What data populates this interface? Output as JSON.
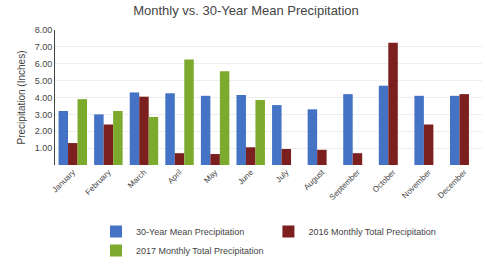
{
  "chart_data": {
    "type": "bar",
    "title": "Monthly vs. 30-Year Mean Precipitation",
    "ylabel": "Precipitation (Inches)",
    "categories": [
      "January",
      "February",
      "March",
      "April",
      "May",
      "June",
      "July",
      "August",
      "September",
      "October",
      "November",
      "December"
    ],
    "series": [
      {
        "name": "30-Year Mean Precipitation",
        "color": "#4472C4",
        "values": [
          3.2,
          3.0,
          4.3,
          4.25,
          4.1,
          4.15,
          3.55,
          3.3,
          4.2,
          4.7,
          4.1,
          4.1
        ]
      },
      {
        "name": "2016 Monthly Total Precipitation",
        "color": "#7B1F1F",
        "values": [
          1.3,
          2.4,
          4.05,
          0.7,
          0.65,
          1.05,
          0.95,
          0.9,
          0.7,
          7.25,
          2.4,
          4.2
        ]
      },
      {
        "name": "2017 Monthly Total Precipitation",
        "color": "#7CAA2D",
        "values": [
          3.9,
          3.2,
          2.85,
          6.25,
          5.55,
          3.85,
          0.0,
          0.0,
          0.0,
          0.0,
          0.0,
          0.0
        ]
      }
    ],
    "ylim": [
      0,
      8.0
    ],
    "yticks": [
      {
        "value": 1.0,
        "label": "1.00"
      },
      {
        "value": 2.0,
        "label": "2.00"
      },
      {
        "value": 3.0,
        "label": "3.00"
      },
      {
        "value": 4.0,
        "label": "4.00"
      },
      {
        "value": 5.0,
        "label": "5.00"
      },
      {
        "value": 6.0,
        "label": "6.00"
      },
      {
        "value": 7.0,
        "label": "7.00"
      },
      {
        "value": 8.0,
        "label": "8.00"
      }
    ],
    "grid": true,
    "legend": "bottom"
  }
}
